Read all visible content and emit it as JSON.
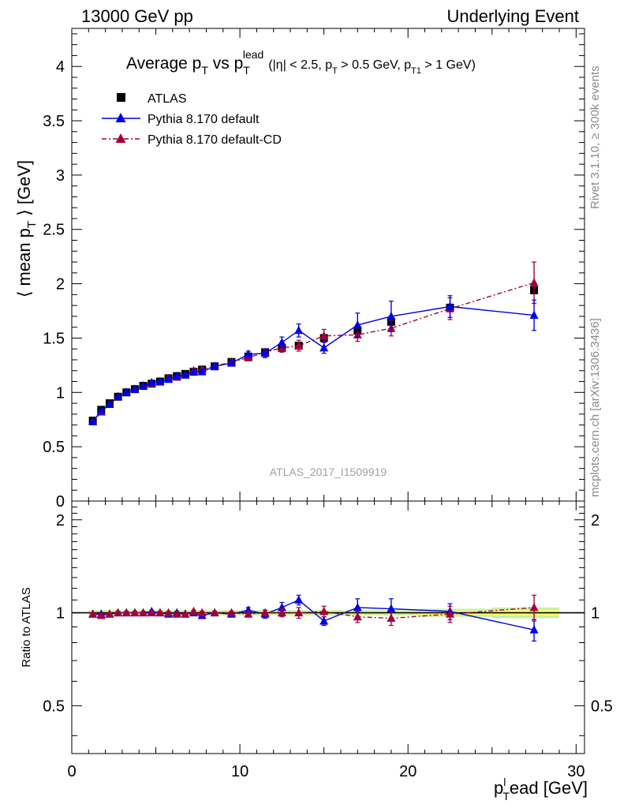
{
  "header": {
    "left": "13000 GeV pp",
    "right": "Underlying Event"
  },
  "side_text": {
    "rivet": "Rivet 3.1.10, ≥ 300k events",
    "mcplots": "mcplots.cern.ch [arXiv:1306.3436]"
  },
  "chart_data": {
    "type": "scatter",
    "title_main": "Average p",
    "title_sub_T": "T",
    "title_vs": " vs p",
    "title_sup_lead": "lead",
    "title_cuts_a": "(|η| < 2.5, p",
    "title_cuts_b": " > 0.5 GeV, p",
    "title_cuts_T1": "T1",
    "title_cuts_c": " > 1 GeV)",
    "watermark": "ATLAS_2017_I1509919",
    "ylabel_pre": "⟨ mean p",
    "ylabel_post": " ⟩ [GeV]",
    "ylabel_sub": "T",
    "ratio_ylabel": "Ratio to ATLAS",
    "xlabel_p": "p",
    "xlabel_sub": "T",
    "xlabel_sup": "l",
    "xlabel_post": "ead [GeV]",
    "xlim": [
      0,
      30.5
    ],
    "ylim": [
      0,
      4.35
    ],
    "ratio_ylim": [
      0.35,
      2.3
    ],
    "x_ticks": [
      "0",
      "10",
      "20",
      "30"
    ],
    "y_ticks": [
      "0",
      "0.5",
      "1",
      "1.5",
      "2",
      "2.5",
      "3",
      "3.5",
      "4"
    ],
    "ratio_ticks": [
      "0.5",
      "1",
      "2"
    ],
    "colors": {
      "data": "#000000",
      "default": "#0000e6",
      "cd": "#a3003a",
      "band_inner": "#ffff66",
      "band_outer": "#c8f0a8"
    },
    "x": [
      1.25,
      1.75,
      2.25,
      2.75,
      3.25,
      3.75,
      4.25,
      4.75,
      5.25,
      5.75,
      6.25,
      6.75,
      7.25,
      7.75,
      8.5,
      9.5,
      10.5,
      11.5,
      12.5,
      13.5,
      15.0,
      17.0,
      19.0,
      22.5,
      27.5
    ],
    "series": [
      {
        "name": "ATLAS",
        "values": [
          0.74,
          0.84,
          0.9,
          0.96,
          1.0,
          1.03,
          1.06,
          1.08,
          1.1,
          1.13,
          1.15,
          1.17,
          1.19,
          1.21,
          1.24,
          1.28,
          1.33,
          1.37,
          1.41,
          1.43,
          1.5,
          1.57,
          1.65,
          1.78,
          1.94
        ],
        "errors": [
          0.01,
          0.01,
          0.01,
          0.01,
          0.01,
          0.01,
          0.01,
          0.01,
          0.01,
          0.01,
          0.01,
          0.01,
          0.01,
          0.01,
          0.01,
          0.01,
          0.01,
          0.02,
          0.02,
          0.02,
          0.02,
          0.03,
          0.03,
          0.04,
          0.05
        ]
      },
      {
        "name": "Pythia 8.170 default",
        "values": [
          0.73,
          0.83,
          0.89,
          0.96,
          1.0,
          1.03,
          1.06,
          1.09,
          1.1,
          1.12,
          1.15,
          1.16,
          1.19,
          1.19,
          1.24,
          1.27,
          1.35,
          1.36,
          1.46,
          1.57,
          1.41,
          1.62,
          1.7,
          1.79,
          1.71
        ],
        "errors": [
          0.01,
          0.01,
          0.01,
          0.01,
          0.01,
          0.01,
          0.01,
          0.01,
          0.01,
          0.01,
          0.01,
          0.01,
          0.02,
          0.02,
          0.02,
          0.02,
          0.03,
          0.04,
          0.05,
          0.06,
          0.05,
          0.11,
          0.14,
          0.1,
          0.14
        ]
      },
      {
        "name": "Pythia 8.170 default-CD",
        "values": [
          0.73,
          0.82,
          0.89,
          0.96,
          1.0,
          1.03,
          1.06,
          1.08,
          1.1,
          1.13,
          1.14,
          1.16,
          1.2,
          1.21,
          1.24,
          1.28,
          1.32,
          1.37,
          1.41,
          1.43,
          1.52,
          1.53,
          1.59,
          1.77,
          2.01
        ],
        "errors": [
          0.01,
          0.01,
          0.01,
          0.01,
          0.01,
          0.01,
          0.01,
          0.01,
          0.01,
          0.01,
          0.01,
          0.01,
          0.02,
          0.02,
          0.02,
          0.02,
          0.03,
          0.03,
          0.04,
          0.05,
          0.06,
          0.06,
          0.07,
          0.1,
          0.19
        ]
      }
    ],
    "ratio_series": [
      {
        "name": "Pythia 8.170 default",
        "values": [
          0.99,
          0.99,
          0.99,
          1.0,
          1.0,
          1.0,
          1.0,
          1.01,
          1.0,
          0.99,
          1.0,
          0.99,
          1.0,
          0.98,
          1.0,
          0.99,
          1.02,
          0.99,
          1.04,
          1.1,
          0.94,
          1.04,
          1.03,
          1.01,
          0.88
        ],
        "errors": [
          0.01,
          0.01,
          0.01,
          0.01,
          0.01,
          0.01,
          0.01,
          0.01,
          0.01,
          0.01,
          0.01,
          0.01,
          0.01,
          0.01,
          0.01,
          0.02,
          0.02,
          0.03,
          0.04,
          0.04,
          0.03,
          0.07,
          0.08,
          0.06,
          0.07
        ]
      },
      {
        "name": "Pythia 8.170 default-CD",
        "values": [
          0.99,
          0.98,
          0.99,
          1.0,
          1.0,
          1.0,
          1.0,
          1.0,
          1.0,
          1.0,
          0.99,
          0.99,
          1.01,
          1.0,
          1.0,
          1.0,
          0.99,
          1.0,
          1.0,
          1.0,
          1.01,
          0.97,
          0.96,
          0.99,
          1.04
        ],
        "errors": [
          0.01,
          0.01,
          0.01,
          0.01,
          0.01,
          0.01,
          0.01,
          0.01,
          0.01,
          0.01,
          0.01,
          0.01,
          0.01,
          0.01,
          0.01,
          0.01,
          0.02,
          0.02,
          0.03,
          0.04,
          0.04,
          0.04,
          0.05,
          0.06,
          0.1
        ]
      }
    ],
    "ratio_band": [
      0.02,
      0.02,
      0.02,
      0.02,
      0.02,
      0.02,
      0.02,
      0.02,
      0.02,
      0.02,
      0.02,
      0.02,
      0.02,
      0.02,
      0.02,
      0.02,
      0.02,
      0.02,
      0.02,
      0.02,
      0.02,
      0.02,
      0.02,
      0.03,
      0.04
    ]
  }
}
